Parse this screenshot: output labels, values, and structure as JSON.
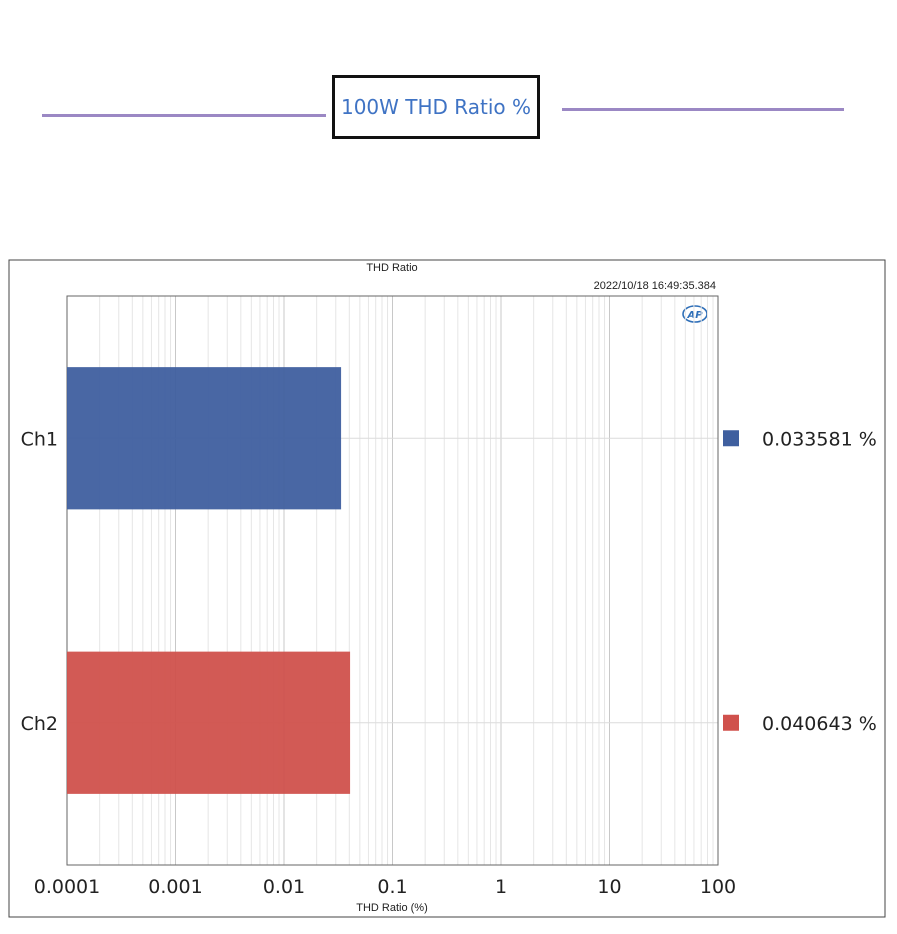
{
  "header": {
    "title": "100W THD Ratio %"
  },
  "chart_data": {
    "type": "bar",
    "orientation": "horizontal",
    "title": "THD Ratio",
    "timestamp": "2022/10/18 16:49:35.384",
    "logo": "AP",
    "xlabel": "THD Ratio (%)",
    "xscale": "log",
    "xlim": [
      0.0001,
      100
    ],
    "x_ticks": [
      "0.0001",
      "0.001",
      "0.01",
      "0.1",
      "1",
      "10",
      "100"
    ],
    "categories": [
      "Ch1",
      "Ch2"
    ],
    "values": [
      0.033581,
      0.040643
    ],
    "value_labels": [
      "0.033581 %",
      "0.040643 %"
    ],
    "colors": [
      "#3f5f9f",
      "#d0514c"
    ],
    "grid": true,
    "legend": "right"
  }
}
